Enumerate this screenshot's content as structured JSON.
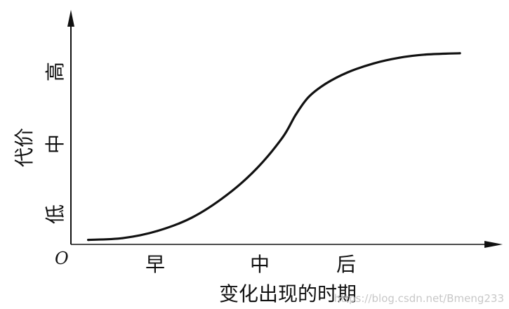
{
  "chart_data": {
    "type": "line",
    "xlabel": "变化出现的时期",
    "ylabel": "代价",
    "origin_label": "O",
    "x_ticks": [
      "早",
      "中",
      "后"
    ],
    "y_ticks": [
      "低",
      "中",
      "高"
    ],
    "grid": false,
    "series": [
      {
        "x": [
          0.2,
          0.6,
          1.0,
          1.4,
          1.8,
          2.15,
          2.45,
          2.6,
          2.75,
          2.95,
          3.2,
          3.5,
          3.8,
          4.1,
          4.5
        ],
        "y": [
          0.1,
          0.14,
          0.3,
          0.6,
          1.1,
          1.7,
          2.4,
          2.9,
          3.3,
          3.6,
          3.85,
          4.05,
          4.18,
          4.25,
          4.28
        ]
      }
    ],
    "xlim": [
      0,
      4.8
    ],
    "ylim": [
      0,
      5.0
    ]
  },
  "watermark": "https://blog.csdn.net/Bmeng233",
  "colors": {
    "curve": "#111111",
    "axes": "#111111",
    "watermark": "#c8c8c8"
  }
}
